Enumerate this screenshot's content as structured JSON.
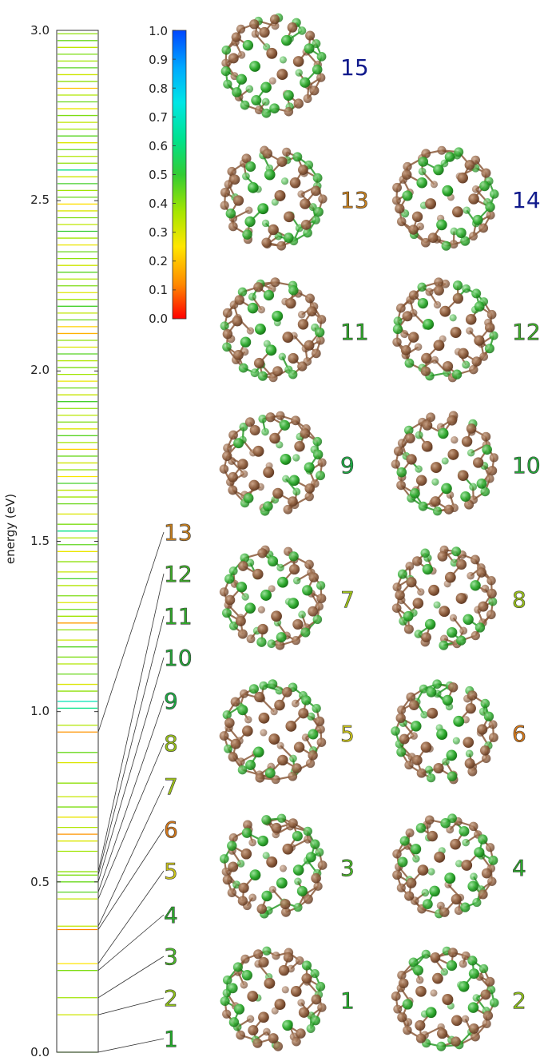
{
  "chart_data": {
    "type": "spectrum",
    "ylabel": "energy (eV)",
    "ylim": [
      0.0,
      3.0
    ],
    "yticks": [
      0.0,
      0.5,
      1.0,
      1.5,
      2.0,
      2.5,
      3.0
    ],
    "ytick_labels": [
      "0.0",
      "0.5",
      "1.0",
      "1.5",
      "2.0",
      "2.5",
      "3.0"
    ],
    "colorbar": {
      "min": 0.0,
      "max": 1.0,
      "ticks": [
        "0.0",
        "0.1",
        "0.2",
        "0.3",
        "0.4",
        "0.5",
        "0.6",
        "0.7",
        "0.8",
        "0.9",
        "1.0"
      ],
      "colormap": [
        "#ff0000",
        "#ff8a00",
        "#ffe600",
        "#a6e600",
        "#33cc33",
        "#00e28c",
        "#00e6e6",
        "#00aaff",
        "#0046ff"
      ]
    },
    "isomers": [
      {
        "label": "1",
        "energy": 0.0,
        "value": 0.45,
        "color": "#22b02a"
      },
      {
        "label": "2",
        "energy": 0.11,
        "value": 0.32,
        "color": "#8fc11a"
      },
      {
        "label": "3",
        "energy": 0.16,
        "value": 0.38,
        "color": "#4cba2a"
      },
      {
        "label": "4",
        "energy": 0.24,
        "value": 0.42,
        "color": "#2aa82a"
      },
      {
        "label": "5",
        "energy": 0.26,
        "value": 0.25,
        "color": "#c9c21a"
      },
      {
        "label": "6",
        "energy": 0.36,
        "value": 0.12,
        "color": "#d4781a"
      },
      {
        "label": "7",
        "energy": 0.37,
        "value": 0.34,
        "color": "#9fc21a"
      },
      {
        "label": "8",
        "energy": 0.45,
        "value": 0.33,
        "color": "#9ac21a"
      },
      {
        "label": "9",
        "energy": 0.47,
        "value": 0.46,
        "color": "#1eaa44"
      },
      {
        "label": "10",
        "energy": 0.5,
        "value": 0.44,
        "color": "#26a83a"
      },
      {
        "label": "11",
        "energy": 0.52,
        "value": 0.42,
        "color": "#30aa2a"
      },
      {
        "label": "12",
        "energy": 0.53,
        "value": 0.4,
        "color": "#3fae2a"
      },
      {
        "label": "13",
        "energy": 0.94,
        "value": 0.14,
        "color": "#c8801e"
      },
      {
        "label": "14",
        "energy": null,
        "value": 0.95,
        "color": "#101a8c"
      },
      {
        "label": "15",
        "energy": null,
        "value": 0.95,
        "color": "#101a8c"
      }
    ],
    "levels": [
      {
        "e": 0.0,
        "v": 0.45
      },
      {
        "e": 0.11,
        "v": 0.32
      },
      {
        "e": 0.16,
        "v": 0.38
      },
      {
        "e": 0.24,
        "v": 0.42
      },
      {
        "e": 0.26,
        "v": 0.25
      },
      {
        "e": 0.36,
        "v": 0.12
      },
      {
        "e": 0.37,
        "v": 0.34
      },
      {
        "e": 0.45,
        "v": 0.33
      },
      {
        "e": 0.47,
        "v": 0.46
      },
      {
        "e": 0.5,
        "v": 0.44
      },
      {
        "e": 0.52,
        "v": 0.42
      },
      {
        "e": 0.53,
        "v": 0.4
      },
      {
        "e": 0.59,
        "v": 0.38
      },
      {
        "e": 0.62,
        "v": 0.3
      },
      {
        "e": 0.64,
        "v": 0.14
      },
      {
        "e": 0.66,
        "v": 0.36
      },
      {
        "e": 0.69,
        "v": 0.28
      },
      {
        "e": 0.72,
        "v": 0.42
      },
      {
        "e": 0.75,
        "v": 0.33
      },
      {
        "e": 0.79,
        "v": 0.4
      },
      {
        "e": 0.85,
        "v": 0.3
      },
      {
        "e": 0.88,
        "v": 0.44
      },
      {
        "e": 0.94,
        "v": 0.14
      },
      {
        "e": 0.96,
        "v": 0.36
      },
      {
        "e": 1.01,
        "v": 0.62
      },
      {
        "e": 1.03,
        "v": 0.68
      },
      {
        "e": 1.06,
        "v": 0.4
      },
      {
        "e": 1.08,
        "v": 0.3
      },
      {
        "e": 1.11,
        "v": 0.44
      },
      {
        "e": 1.14,
        "v": 0.36
      },
      {
        "e": 1.16,
        "v": 0.42
      },
      {
        "e": 1.19,
        "v": 0.46
      },
      {
        "e": 1.21,
        "v": 0.32
      },
      {
        "e": 1.24,
        "v": 0.4
      },
      {
        "e": 1.26,
        "v": 0.15
      },
      {
        "e": 1.28,
        "v": 0.38
      },
      {
        "e": 1.3,
        "v": 0.44
      },
      {
        "e": 1.32,
        "v": 0.3
      },
      {
        "e": 1.34,
        "v": 0.42
      },
      {
        "e": 1.37,
        "v": 0.36
      },
      {
        "e": 1.39,
        "v": 0.48
      },
      {
        "e": 1.41,
        "v": 0.33
      },
      {
        "e": 1.44,
        "v": 0.4
      },
      {
        "e": 1.47,
        "v": 0.28
      },
      {
        "e": 1.49,
        "v": 0.45
      },
      {
        "e": 1.51,
        "v": 0.36
      },
      {
        "e": 1.53,
        "v": 0.62
      },
      {
        "e": 1.55,
        "v": 0.42
      },
      {
        "e": 1.58,
        "v": 0.3
      },
      {
        "e": 1.61,
        "v": 0.44
      },
      {
        "e": 1.63,
        "v": 0.38
      },
      {
        "e": 1.65,
        "v": 0.34
      },
      {
        "e": 1.67,
        "v": 0.48
      },
      {
        "e": 1.69,
        "v": 0.26
      },
      {
        "e": 1.71,
        "v": 0.4
      },
      {
        "e": 1.73,
        "v": 0.32
      },
      {
        "e": 1.75,
        "v": 0.44
      },
      {
        "e": 1.77,
        "v": 0.22
      },
      {
        "e": 1.79,
        "v": 0.38
      },
      {
        "e": 1.81,
        "v": 0.46
      },
      {
        "e": 1.83,
        "v": 0.3
      },
      {
        "e": 1.85,
        "v": 0.42
      },
      {
        "e": 1.87,
        "v": 0.35
      },
      {
        "e": 1.89,
        "v": 0.4
      },
      {
        "e": 1.91,
        "v": 0.48
      },
      {
        "e": 1.93,
        "v": 0.33
      },
      {
        "e": 1.95,
        "v": 0.44
      },
      {
        "e": 1.97,
        "v": 0.28
      },
      {
        "e": 1.99,
        "v": 0.38
      },
      {
        "e": 2.01,
        "v": 0.42
      },
      {
        "e": 2.03,
        "v": 0.36
      },
      {
        "e": 2.05,
        "v": 0.46
      },
      {
        "e": 2.07,
        "v": 0.3
      },
      {
        "e": 2.09,
        "v": 0.4
      },
      {
        "e": 2.11,
        "v": 0.18
      },
      {
        "e": 2.13,
        "v": 0.22
      },
      {
        "e": 2.15,
        "v": 0.44
      },
      {
        "e": 2.17,
        "v": 0.34
      },
      {
        "e": 2.19,
        "v": 0.48
      },
      {
        "e": 2.21,
        "v": 0.38
      },
      {
        "e": 2.23,
        "v": 0.3
      },
      {
        "e": 2.25,
        "v": 0.42
      },
      {
        "e": 2.27,
        "v": 0.36
      },
      {
        "e": 2.29,
        "v": 0.46
      },
      {
        "e": 2.31,
        "v": 0.32
      },
      {
        "e": 2.33,
        "v": 0.4
      },
      {
        "e": 2.35,
        "v": 0.44
      },
      {
        "e": 2.37,
        "v": 0.28
      },
      {
        "e": 2.39,
        "v": 0.38
      },
      {
        "e": 2.41,
        "v": 0.5
      },
      {
        "e": 2.43,
        "v": 0.34
      },
      {
        "e": 2.45,
        "v": 0.42
      },
      {
        "e": 2.47,
        "v": 0.3
      },
      {
        "e": 2.49,
        "v": 0.24
      },
      {
        "e": 2.51,
        "v": 0.44
      },
      {
        "e": 2.53,
        "v": 0.38
      },
      {
        "e": 2.55,
        "v": 0.48
      },
      {
        "e": 2.57,
        "v": 0.32
      },
      {
        "e": 2.59,
        "v": 0.62
      },
      {
        "e": 2.61,
        "v": 0.4
      },
      {
        "e": 2.63,
        "v": 0.36
      },
      {
        "e": 2.65,
        "v": 0.44
      },
      {
        "e": 2.67,
        "v": 0.3
      },
      {
        "e": 2.69,
        "v": 0.46
      },
      {
        "e": 2.71,
        "v": 0.38
      },
      {
        "e": 2.73,
        "v": 0.34
      },
      {
        "e": 2.75,
        "v": 0.42
      },
      {
        "e": 2.77,
        "v": 0.28
      },
      {
        "e": 2.79,
        "v": 0.44
      },
      {
        "e": 2.81,
        "v": 0.36
      },
      {
        "e": 2.83,
        "v": 0.2
      },
      {
        "e": 2.85,
        "v": 0.4
      },
      {
        "e": 2.87,
        "v": 0.32
      },
      {
        "e": 2.89,
        "v": 0.46
      },
      {
        "e": 2.91,
        "v": 0.38
      },
      {
        "e": 2.93,
        "v": 0.42
      },
      {
        "e": 2.95,
        "v": 0.34
      },
      {
        "e": 2.97,
        "v": 0.44
      },
      {
        "e": 2.99,
        "v": 0.4
      }
    ]
  }
}
